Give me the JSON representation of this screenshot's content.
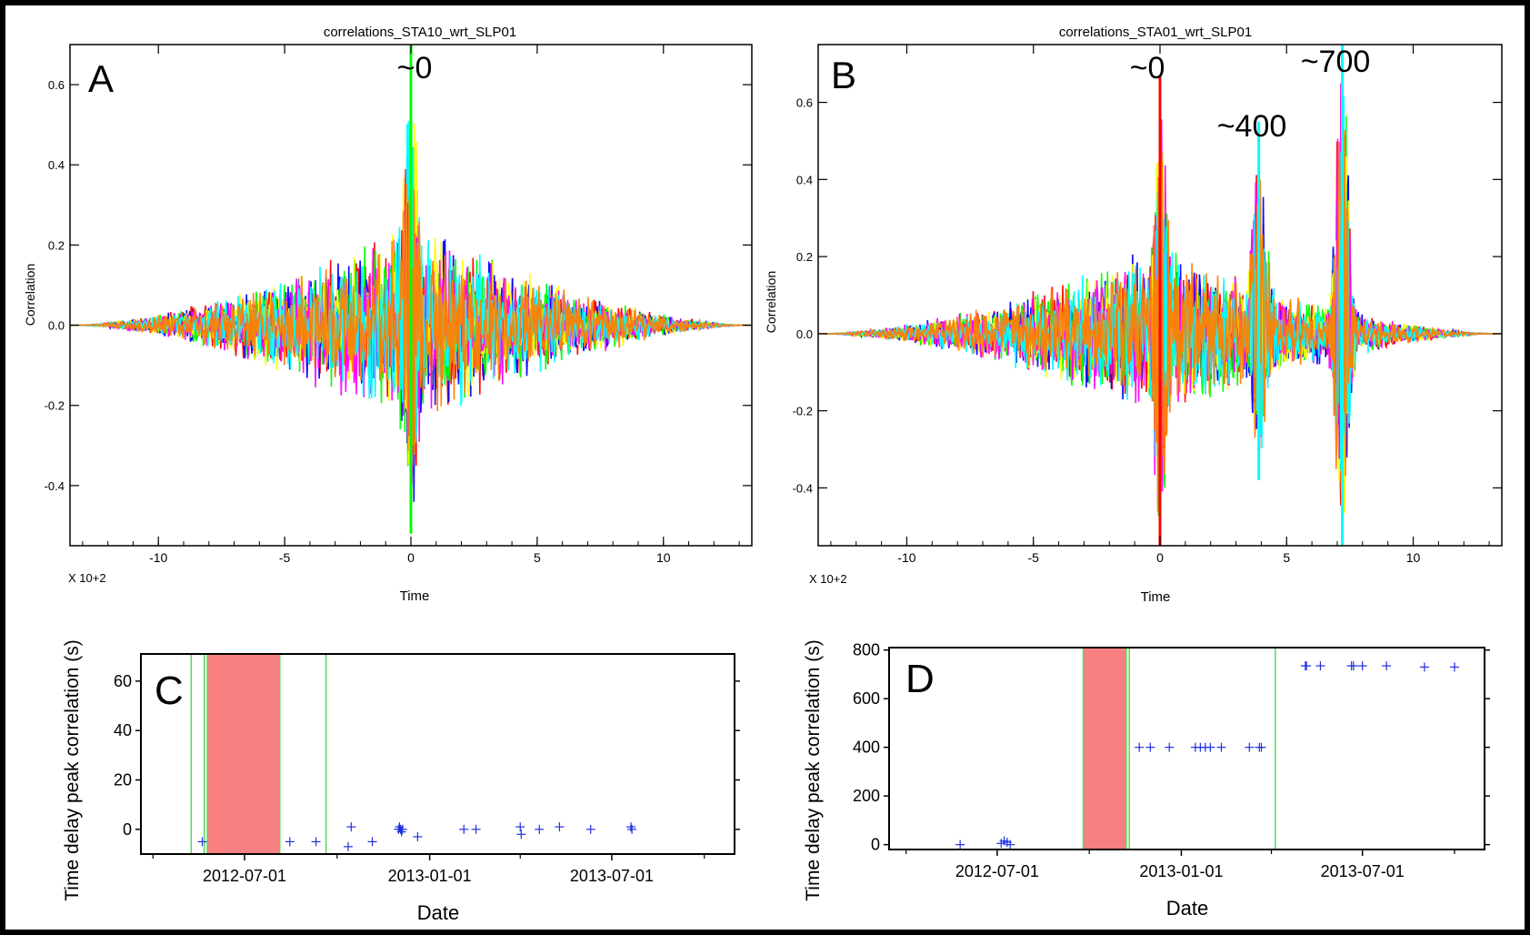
{
  "colors": {
    "frame": "#000000",
    "panel_bg": "#ffffff",
    "gap_fill": "#f88080",
    "gap_line": "#58d858",
    "marker": "#2030e0",
    "trace_palette": [
      "#ff0000",
      "#0000ff",
      "#00ff00",
      "#ffff00",
      "#ff00ff",
      "#00ffff",
      "#ff7f00"
    ]
  },
  "chart_data": [
    {
      "type": "line",
      "panel_letter": "A",
      "title": "correlations_STA10_wrt_SLP01",
      "xlabel": "Time",
      "ylabel": "Correlation",
      "x_multiplier_label": "X 10+2",
      "xlim": [
        -13.5,
        13.5
      ],
      "ylim": [
        -0.55,
        0.7
      ],
      "xticks": [
        -10,
        -5,
        0,
        5,
        10
      ],
      "xtick_labels": [
        "-10",
        "-5",
        "0",
        "5",
        "10"
      ],
      "yticks": [
        -0.4,
        -0.2,
        0.0,
        0.2,
        0.4,
        0.6
      ],
      "ytick_labels": [
        "-0.4",
        "-0.2",
        "0.0",
        "0.2",
        "0.4",
        "0.6"
      ],
      "annotations": [
        {
          "text": "~0",
          "x": 0
        }
      ],
      "peaks": [
        {
          "x": 0,
          "max": 0.7,
          "min": -0.52
        }
      ],
      "envelope": {
        "center": 0,
        "amplitude": 0.18,
        "half_width": 13.3
      },
      "series_count": 7
    },
    {
      "type": "line",
      "panel_letter": "B",
      "title": "correlations_STA01_wrt_SLP01",
      "xlabel": "Time",
      "ylabel": "Correlation",
      "x_multiplier_label": "X 10+2",
      "xlim": [
        -13.5,
        13.5
      ],
      "ylim": [
        -0.55,
        0.75
      ],
      "xticks": [
        -10,
        -5,
        0,
        5,
        10
      ],
      "xtick_labels": [
        "-10",
        "-5",
        "0",
        "5",
        "10"
      ],
      "yticks": [
        -0.4,
        -0.2,
        0.0,
        0.2,
        0.4,
        0.6
      ],
      "ytick_labels": [
        "-0.4",
        "-0.2",
        "0.0",
        "0.2",
        "0.4",
        "0.6"
      ],
      "annotations": [
        {
          "text": "~0",
          "x": 0
        },
        {
          "text": "~400",
          "x": 4
        },
        {
          "text": "~700",
          "x": 7.2
        }
      ],
      "peaks": [
        {
          "x": 0,
          "max": 0.67,
          "min": -0.55
        },
        {
          "x": 3.9,
          "max": 0.55,
          "min": -0.38
        },
        {
          "x": 7.2,
          "max": 0.75,
          "min": -0.55
        }
      ],
      "envelope": {
        "center": 0,
        "amplitude": 0.16,
        "half_width": 13.3
      },
      "series_count": 7
    },
    {
      "type": "scatter",
      "panel_letter": "C",
      "xlabel": "Date",
      "ylabel": "Time delay peak correlation (s)",
      "ylim": [
        -10,
        71
      ],
      "yticks": [
        0,
        20,
        40,
        60
      ],
      "ytick_labels": [
        "0",
        "20",
        "40",
        "60"
      ],
      "xlim": [
        "2012-03-20",
        "2013-10-31"
      ],
      "xticks": [
        "2012-07-01",
        "2013-01-01",
        "2013-07-01"
      ],
      "xtick_labels": [
        "2012-07-01",
        "2013-01-01",
        "2013-07-01"
      ],
      "minor_xticks": [
        "2012-04-01",
        "2012-10-01",
        "2013-04-01",
        "2013-10-01"
      ],
      "gap_regions": [
        [
          "2012-05-25",
          "2012-08-05"
        ]
      ],
      "gap_lines": [
        "2012-05-09",
        "2012-05-22",
        "2012-09-20"
      ],
      "points": [
        {
          "x": "2012-05-20",
          "y": -5
        },
        {
          "x": "2012-08-15",
          "y": -5
        },
        {
          "x": "2012-09-10",
          "y": -5
        },
        {
          "x": "2012-10-12",
          "y": -7
        },
        {
          "x": "2012-10-15",
          "y": 1
        },
        {
          "x": "2012-11-05",
          "y": -5
        },
        {
          "x": "2012-12-01",
          "y": 0
        },
        {
          "x": "2012-12-02",
          "y": 1
        },
        {
          "x": "2012-12-03",
          "y": 0
        },
        {
          "x": "2012-12-04",
          "y": -1
        },
        {
          "x": "2012-12-05",
          "y": 0
        },
        {
          "x": "2012-12-20",
          "y": -3
        },
        {
          "x": "2013-02-04",
          "y": 0
        },
        {
          "x": "2013-02-16",
          "y": 0
        },
        {
          "x": "2013-04-01",
          "y": 1
        },
        {
          "x": "2013-04-02",
          "y": -2
        },
        {
          "x": "2013-04-20",
          "y": 0
        },
        {
          "x": "2013-05-10",
          "y": 1
        },
        {
          "x": "2013-06-10",
          "y": 0
        },
        {
          "x": "2013-07-20",
          "y": 1
        },
        {
          "x": "2013-07-21",
          "y": 0
        }
      ]
    },
    {
      "type": "scatter",
      "panel_letter": "D",
      "xlabel": "Date",
      "ylabel": "Time delay peak correlation (s)",
      "ylim": [
        -20,
        810
      ],
      "yticks": [
        0,
        200,
        400,
        600,
        800
      ],
      "ytick_labels": [
        "0",
        "200",
        "400",
        "600",
        "800"
      ],
      "xlim": [
        "2012-03-15",
        "2013-10-31"
      ],
      "xticks": [
        "2012-07-01",
        "2013-01-01",
        "2013-07-01"
      ],
      "xtick_labels": [
        "2012-07-01",
        "2013-01-01",
        "2013-07-01"
      ],
      "minor_xticks": [
        "2012-04-01",
        "2012-10-01",
        "2013-04-01",
        "2013-10-01"
      ],
      "gap_regions": [
        [
          "2012-09-25",
          "2012-11-07"
        ]
      ],
      "gap_lines": [
        "2012-11-10",
        "2013-04-05"
      ],
      "points": [
        {
          "x": "2012-05-25",
          "y": 0
        },
        {
          "x": "2012-07-05",
          "y": 5
        },
        {
          "x": "2012-07-08",
          "y": 15
        },
        {
          "x": "2012-07-11",
          "y": 10
        },
        {
          "x": "2012-07-14",
          "y": 0
        },
        {
          "x": "2012-11-20",
          "y": 400
        },
        {
          "x": "2012-12-01",
          "y": 400
        },
        {
          "x": "2012-12-20",
          "y": 400
        },
        {
          "x": "2013-01-15",
          "y": 400
        },
        {
          "x": "2013-01-20",
          "y": 400
        },
        {
          "x": "2013-01-25",
          "y": 400
        },
        {
          "x": "2013-01-30",
          "y": 400
        },
        {
          "x": "2013-02-10",
          "y": 400
        },
        {
          "x": "2013-03-10",
          "y": 400
        },
        {
          "x": "2013-03-20",
          "y": 400
        },
        {
          "x": "2013-03-22",
          "y": 400
        },
        {
          "x": "2013-05-05",
          "y": 735
        },
        {
          "x": "2013-05-06",
          "y": 735
        },
        {
          "x": "2013-05-20",
          "y": 735
        },
        {
          "x": "2013-06-20",
          "y": 735
        },
        {
          "x": "2013-06-22",
          "y": 735
        },
        {
          "x": "2013-07-01",
          "y": 735
        },
        {
          "x": "2013-07-25",
          "y": 735
        },
        {
          "x": "2013-09-01",
          "y": 730
        },
        {
          "x": "2013-10-01",
          "y": 730
        }
      ]
    }
  ]
}
